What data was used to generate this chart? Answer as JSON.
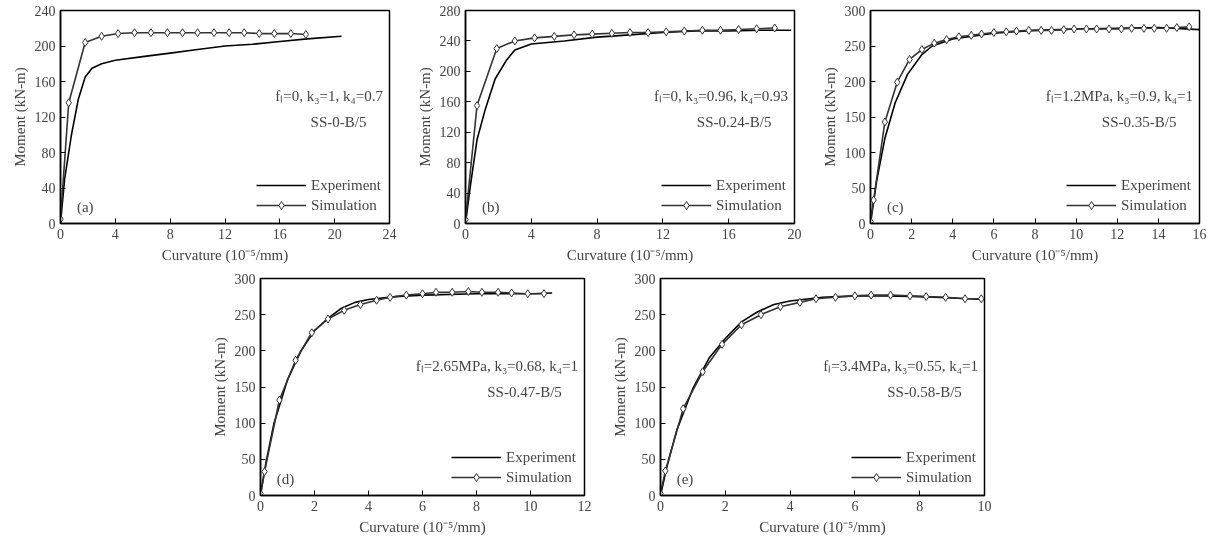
{
  "chart_data": [
    {
      "type": "line",
      "xlabel": "Curvature (10⁻⁵/mm)",
      "ylabel": "Moment (kN-m)",
      "xlim": [
        0,
        24
      ],
      "xticks": [
        0,
        4,
        8,
        12,
        16,
        20,
        24
      ],
      "ylim": [
        0,
        240
      ],
      "yticks": [
        0,
        40,
        80,
        120,
        160,
        200,
        240
      ],
      "legend": "bottom right",
      "annotations": [
        "fₗ=0, k₃=1, k₄=0.7",
        "SS-0-B/5",
        "(a)"
      ],
      "series": [
        {
          "name": "Experiment",
          "color": "#000000",
          "marker": "none",
          "x": [
            0,
            0.3,
            0.8,
            1.3,
            1.8,
            2.3,
            3,
            4,
            6,
            8,
            10,
            12,
            14,
            16,
            18,
            20.5
          ],
          "values": [
            0,
            50,
            100,
            140,
            165,
            175,
            180,
            184,
            188,
            192,
            196,
            200,
            202,
            205,
            208,
            211
          ]
        },
        {
          "name": "Simulation",
          "color": "#333333",
          "marker": "diamond",
          "x": [
            0,
            0.6,
            1.8,
            3.0,
            4.2,
            5.4,
            6.6,
            7.8,
            8.9,
            10,
            11.2,
            12.3,
            13.4,
            14.5,
            15.6,
            16.8,
            17.9
          ],
          "values": [
            5,
            136,
            204,
            211,
            214,
            215,
            215,
            215,
            215,
            215,
            215,
            215,
            215,
            214,
            214,
            214,
            213
          ]
        }
      ]
    },
    {
      "type": "line",
      "xlabel": "Curvature (10⁻⁵/mm)",
      "ylabel": "Moment (kN-m)",
      "xlim": [
        0,
        20
      ],
      "xticks": [
        0,
        4,
        8,
        12,
        16,
        20
      ],
      "ylim": [
        0,
        280
      ],
      "yticks": [
        0,
        40,
        80,
        120,
        160,
        200,
        240,
        280
      ],
      "legend": "bottom right",
      "annotations": [
        "fₗ=0, k₃=0.96, k₄=0.93",
        "SS-0.24-B/5",
        "(b)"
      ],
      "series": [
        {
          "name": "Experiment",
          "color": "#000000",
          "marker": "none",
          "x": [
            0,
            0.3,
            0.7,
            1.2,
            1.8,
            2.5,
            3,
            4,
            6,
            8,
            10,
            12,
            14,
            16,
            18,
            19.8
          ],
          "values": [
            0,
            50,
            110,
            150,
            190,
            215,
            228,
            236,
            240,
            245,
            248,
            251,
            253,
            253,
            254,
            254
          ]
        },
        {
          "name": "Simulation",
          "color": "#333333",
          "marker": "diamond",
          "x": [
            0,
            0.7,
            1.9,
            3.0,
            4.2,
            5.4,
            6.6,
            7.7,
            8.9,
            10,
            11.1,
            12.2,
            13.3,
            14.4,
            15.5,
            16.6,
            17.7,
            18.8
          ],
          "values": [
            5,
            155,
            230,
            240,
            244,
            246,
            248,
            249,
            250,
            251,
            251,
            252,
            253,
            254,
            254,
            255,
            256,
            257
          ]
        }
      ]
    },
    {
      "type": "line",
      "xlabel": "Curvature (10⁻⁵/mm)",
      "ylabel": "Moment (kN-m)",
      "xlim": [
        0,
        16
      ],
      "xticks": [
        0,
        2,
        4,
        6,
        8,
        10,
        12,
        14,
        16
      ],
      "ylim": [
        0,
        300
      ],
      "yticks": [
        0,
        50,
        100,
        150,
        200,
        250,
        300
      ],
      "legend": "bottom right",
      "annotations": [
        "fₗ=1.2MPa, k₃=0.9, k₄=1",
        "SS-0.35-B/5",
        "(c)"
      ],
      "series": [
        {
          "name": "Experiment",
          "color": "#000000",
          "marker": "none",
          "x": [
            0,
            0.3,
            0.7,
            1.2,
            1.8,
            2.5,
            3,
            4,
            6,
            8,
            10,
            12,
            14,
            16
          ],
          "values": [
            0,
            60,
            120,
            170,
            210,
            238,
            250,
            260,
            268,
            272,
            274,
            275,
            276,
            273
          ]
        },
        {
          "name": "Simulation",
          "color": "#333333",
          "marker": "diamond",
          "x": [
            0,
            0.15,
            0.7,
            1.3,
            1.9,
            2.5,
            3.1,
            3.7,
            4.3,
            4.9,
            5.4,
            6.0,
            6.6,
            7.1,
            7.7,
            8.3,
            8.8,
            9.4,
            9.9,
            10.5,
            11.0,
            11.6,
            12.2,
            12.7,
            13.3,
            13.8,
            14.4,
            14.9,
            15.5
          ],
          "values": [
            3,
            33,
            143,
            199,
            231,
            245,
            254,
            259,
            263,
            265,
            267,
            269,
            270,
            271,
            272,
            272,
            272,
            273,
            274,
            274,
            274,
            274,
            274,
            275,
            275,
            275,
            275,
            276,
            277
          ]
        }
      ]
    },
    {
      "type": "line",
      "xlabel": "Curvature (10⁻⁵/mm)",
      "ylabel": "Moment (kN-m)",
      "xlim": [
        0,
        12
      ],
      "xticks": [
        0,
        2,
        4,
        6,
        8,
        10,
        12
      ],
      "ylim": [
        0,
        300
      ],
      "yticks": [
        0,
        50,
        100,
        150,
        200,
        250,
        300
      ],
      "legend": "bottom right",
      "annotations": [
        "fₗ=2.65MPa, k₃=0.68, k₄=1",
        "SS-0.47-B/5",
        "(d)"
      ],
      "series": [
        {
          "name": "Experiment",
          "color": "#000000",
          "marker": "none",
          "x": [
            0,
            0.2,
            0.5,
            1,
            1.5,
            2,
            2.5,
            3,
            3.5,
            4,
            5,
            6,
            8,
            10,
            10.8
          ],
          "values": [
            0,
            45,
            100,
            160,
            200,
            228,
            245,
            259,
            267,
            271,
            275,
            277,
            279,
            279,
            280
          ]
        },
        {
          "name": "Simulation",
          "color": "#333333",
          "marker": "diamond",
          "x": [
            0,
            0.15,
            0.7,
            1.3,
            1.9,
            2.5,
            3.1,
            3.7,
            4.3,
            4.8,
            5.4,
            6.0,
            6.5,
            7.1,
            7.7,
            8.2,
            8.8,
            9.3,
            9.9,
            10.5
          ],
          "values": [
            3,
            33,
            132,
            187,
            225,
            244,
            256,
            264,
            270,
            274,
            277,
            279,
            281,
            281,
            282,
            281,
            281,
            280,
            279,
            279
          ]
        }
      ]
    },
    {
      "type": "line",
      "xlabel": "Curvature (10⁻⁵/mm)",
      "ylabel": "Moment (kN-m)",
      "xlim": [
        0,
        10
      ],
      "xticks": [
        0,
        2,
        4,
        6,
        8,
        10
      ],
      "ylim": [
        0,
        300
      ],
      "yticks": [
        0,
        50,
        100,
        150,
        200,
        250,
        300
      ],
      "legend": "bottom right",
      "annotations": [
        "fₗ=3.4MPa, k₃=0.55, k₄=1",
        "SS-0.58-B/5",
        "(e)"
      ],
      "series": [
        {
          "name": "Experiment",
          "color": "#000000",
          "marker": "none",
          "x": [
            0,
            0.2,
            0.5,
            1,
            1.5,
            2,
            2.5,
            3,
            3.5,
            4,
            5,
            6,
            7,
            8,
            9,
            10
          ],
          "values": [
            0,
            40,
            90,
            148,
            190,
            217,
            240,
            254,
            264,
            269,
            274,
            276,
            276,
            275,
            273,
            271
          ]
        },
        {
          "name": "Simulation",
          "color": "#333333",
          "marker": "diamond",
          "x": [
            0,
            0.15,
            0.7,
            1.3,
            1.9,
            2.5,
            3.1,
            3.7,
            4.3,
            4.8,
            5.4,
            6.0,
            6.5,
            7.1,
            7.7,
            8.2,
            8.8,
            9.4,
            9.9
          ],
          "values": [
            3,
            34,
            120,
            171,
            209,
            236,
            250,
            261,
            267,
            272,
            274,
            276,
            277,
            277,
            276,
            275,
            274,
            272,
            272
          ]
        }
      ]
    }
  ]
}
